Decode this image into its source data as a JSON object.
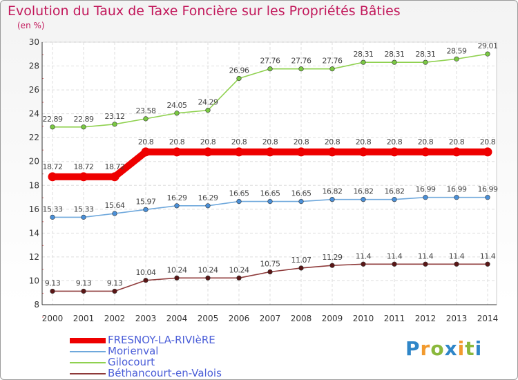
{
  "chart_data": {
    "type": "line",
    "title": "Evolution du Taux de Taxe Foncière sur les Propriétés Bâties",
    "unit_label": "(en %)",
    "xlabel": "",
    "ylabel": "",
    "x": [
      "2000",
      "2001",
      "2002",
      "2003",
      "2004",
      "2005",
      "2006",
      "2007",
      "2008",
      "2009",
      "2010",
      "2011",
      "2012",
      "2013",
      "2014"
    ],
    "ylim": [
      8,
      30
    ],
    "yticks": [
      8,
      10,
      12,
      14,
      16,
      18,
      20,
      22,
      24,
      26,
      28,
      30
    ],
    "grid": true,
    "legend_position": "bottom-left",
    "series": [
      {
        "name": "Gilocourt",
        "color": "#8fd14f",
        "marker_color": "#7ac943",
        "values": [
          22.89,
          22.89,
          23.12,
          23.58,
          24.05,
          24.29,
          26.96,
          27.76,
          27.76,
          27.76,
          28.31,
          28.31,
          28.31,
          28.59,
          29.01
        ],
        "labels": [
          "22.89",
          "22.89",
          "23.12",
          "23.58",
          "24.05",
          "24.29",
          "26.96",
          "27.76",
          "27.76",
          "27.76",
          "28.31",
          "28.31",
          "28.31",
          "28.59",
          "29.01"
        ]
      },
      {
        "name": "FRESNOY-LA-RIVIèRE",
        "color": "#ee0000",
        "marker_color": "#ee0000",
        "values": [
          18.72,
          18.72,
          18.72,
          20.8,
          20.8,
          20.8,
          20.8,
          20.8,
          20.8,
          20.8,
          20.8,
          20.8,
          20.8,
          20.8,
          20.8
        ],
        "labels": [
          "18.72",
          "18.72",
          "18.72",
          "20.8",
          "20.8",
          "20.8",
          "20.8",
          "20.8",
          "20.8",
          "20.8",
          "20.8",
          "20.8",
          "20.8",
          "20.8",
          "20.8"
        ]
      },
      {
        "name": "Morienval",
        "color": "#6fa8dc",
        "marker_color": "#4a90d9",
        "values": [
          15.33,
          15.33,
          15.64,
          15.97,
          16.29,
          16.29,
          16.65,
          16.65,
          16.65,
          16.82,
          16.82,
          16.82,
          16.99,
          16.99,
          16.99
        ],
        "labels": [
          "15.33",
          "15.33",
          "15.64",
          "15.97",
          "16.29",
          "16.29",
          "16.65",
          "16.65",
          "16.65",
          "16.82",
          "16.82",
          "16.82",
          "16.99",
          "16.99",
          "16.99"
        ]
      },
      {
        "name": "Béthancourt-en-Valois",
        "color": "#8e3a3a",
        "marker_color": "#5a1616",
        "values": [
          9.13,
          9.13,
          9.13,
          10.04,
          10.24,
          10.24,
          10.24,
          10.75,
          11.07,
          11.29,
          11.4,
          11.4,
          11.4,
          11.4,
          11.4
        ],
        "labels": [
          "9.13",
          "9.13",
          "9.13",
          "10.04",
          "10.24",
          "10.24",
          "10.24",
          "10.75",
          "11.07",
          "11.29",
          "11.4",
          "11.4",
          "11.4",
          "11.4",
          "11.4"
        ]
      }
    ],
    "legend": [
      {
        "name": "FRESNOY-LA-RIVIèRE",
        "color": "#ee0000"
      },
      {
        "name": "Morienval",
        "color": "#6fa8dc"
      },
      {
        "name": "Gilocourt",
        "color": "#8fd14f"
      },
      {
        "name": "Béthancourt-en-Valois",
        "color": "#8e3a3a"
      }
    ]
  },
  "branding": {
    "logo_letters": [
      "P",
      "r",
      "o",
      "x",
      "i",
      "t",
      "i"
    ]
  }
}
